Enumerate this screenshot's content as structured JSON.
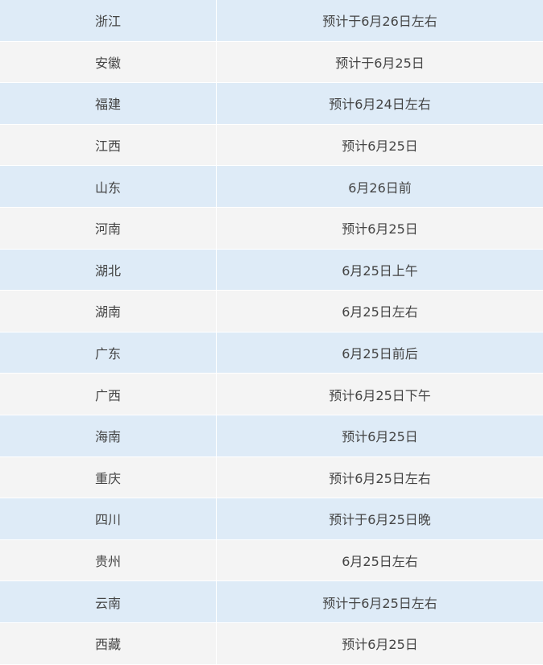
{
  "colors": {
    "row_odd": "#deebf7",
    "row_even": "#f4f4f4",
    "text": "#444444"
  },
  "rows": [
    {
      "province": "浙江",
      "time": "预计于6月26日左右"
    },
    {
      "province": "安徽",
      "time": "预计于6月25日"
    },
    {
      "province": "福建",
      "time": "预计6月24日左右"
    },
    {
      "province": "江西",
      "time": "预计6月25日"
    },
    {
      "province": "山东",
      "time": "6月26日前"
    },
    {
      "province": "河南",
      "time": "预计6月25日"
    },
    {
      "province": "湖北",
      "time": "6月25日上午"
    },
    {
      "province": "湖南",
      "time": "6月25日左右"
    },
    {
      "province": "广东",
      "time": "6月25日前后"
    },
    {
      "province": "广西",
      "time": "预计6月25日下午"
    },
    {
      "province": "海南",
      "time": "预计6月25日"
    },
    {
      "province": "重庆",
      "time": "预计6月25日左右"
    },
    {
      "province": "四川",
      "time": "预计于6月25日晚"
    },
    {
      "province": "贵州",
      "time": "6月25日左右"
    },
    {
      "province": "云南",
      "time": "预计于6月25日左右"
    },
    {
      "province": "西藏",
      "time": "预计6月25日"
    }
  ]
}
